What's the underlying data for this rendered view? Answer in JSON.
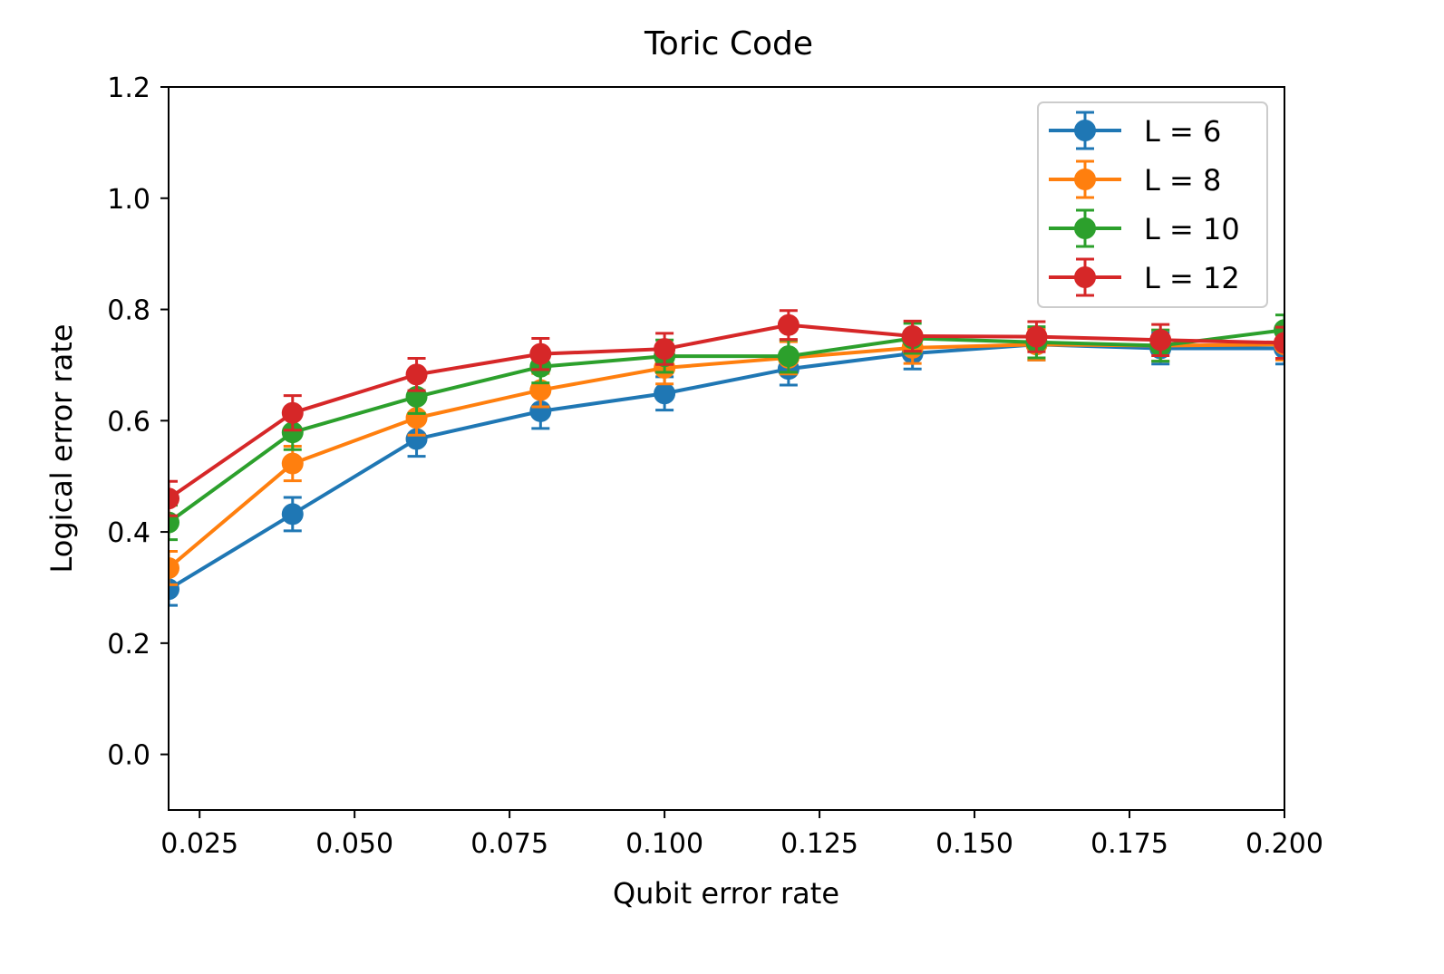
{
  "chart_data": {
    "type": "line",
    "title": "Toric Code",
    "xlabel": "Qubit error rate",
    "ylabel": "Logical error rate",
    "xlim": [
      0.02,
      0.2
    ],
    "ylim": [
      -0.1,
      1.2
    ],
    "xticks": [
      0.025,
      0.05,
      0.075,
      0.1,
      0.125,
      0.15,
      0.175,
      0.2
    ],
    "xtick_labels": [
      "0.025",
      "0.050",
      "0.075",
      "0.100",
      "0.125",
      "0.150",
      "0.175",
      "0.200"
    ],
    "yticks": [
      0.0,
      0.2,
      0.4,
      0.6,
      0.8,
      1.0,
      1.2
    ],
    "ytick_labels": [
      "0.0",
      "0.2",
      "0.4",
      "0.6",
      "0.8",
      "1.0",
      "1.2"
    ],
    "grid": false,
    "legend_position": "top-right",
    "x": [
      0.02,
      0.04,
      0.06,
      0.08,
      0.1,
      0.12,
      0.14,
      0.16,
      0.18,
      0.2
    ],
    "series": [
      {
        "name": "L = 6",
        "color": "#1f77b4",
        "values": [
          0.297,
          0.432,
          0.567,
          0.617,
          0.649,
          0.693,
          0.721,
          0.737,
          0.73,
          0.73
        ],
        "errors": [
          0.029,
          0.03,
          0.031,
          0.031,
          0.03,
          0.029,
          0.028,
          0.028,
          0.028,
          0.028
        ]
      },
      {
        "name": "L = 8",
        "color": "#ff7f0e",
        "values": [
          0.335,
          0.523,
          0.605,
          0.655,
          0.695,
          0.713,
          0.731,
          0.737,
          0.735,
          0.737
        ],
        "errors": [
          0.03,
          0.031,
          0.031,
          0.03,
          0.029,
          0.029,
          0.028,
          0.028,
          0.028,
          0.028
        ]
      },
      {
        "name": "L = 10",
        "color": "#2ca02c",
        "values": [
          0.417,
          0.579,
          0.643,
          0.697,
          0.716,
          0.716,
          0.748,
          0.741,
          0.735,
          0.763
        ],
        "errors": [
          0.031,
          0.031,
          0.03,
          0.029,
          0.029,
          0.029,
          0.027,
          0.028,
          0.028,
          0.027
        ]
      },
      {
        "name": "L = 12",
        "color": "#d62728",
        "values": [
          0.46,
          0.614,
          0.683,
          0.72,
          0.729,
          0.772,
          0.752,
          0.751,
          0.745,
          0.74
        ],
        "errors": [
          0.031,
          0.031,
          0.029,
          0.028,
          0.028,
          0.026,
          0.027,
          0.027,
          0.028,
          0.028
        ]
      }
    ]
  }
}
